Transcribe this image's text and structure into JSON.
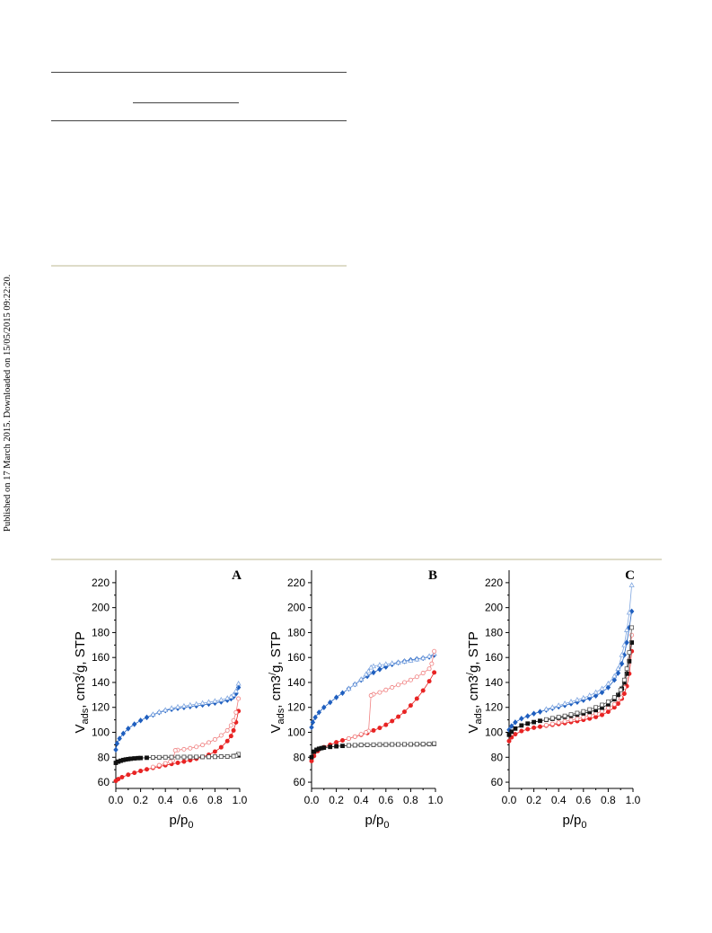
{
  "sidebar_note": "Published on 17 March 2015. Downloaded on 15/05/2015 09:22:20.",
  "chart_data": [
    {
      "panel": "A",
      "type": "scatter",
      "xlabel": "p/p0",
      "ylabel": "Vads, cm3/g, STP",
      "xlim": [
        0,
        1
      ],
      "ylim": [
        55,
        230
      ],
      "xticks": [
        0.0,
        0.2,
        0.4,
        0.6,
        0.8,
        1.0
      ],
      "yticks": [
        60,
        80,
        100,
        120,
        140,
        160,
        180,
        200,
        220
      ],
      "grid": false,
      "series": [
        {
          "color": "#1f5fbf",
          "marker": "filled-diamond",
          "branch": "adsorption",
          "x": [
            0.0,
            0.01,
            0.03,
            0.06,
            0.1,
            0.15,
            0.2,
            0.25,
            0.3,
            0.35,
            0.4,
            0.45,
            0.5,
            0.55,
            0.6,
            0.65,
            0.7,
            0.75,
            0.8,
            0.85,
            0.9,
            0.93,
            0.95,
            0.97,
            0.99
          ],
          "y": [
            86,
            91,
            95,
            99,
            103,
            106.5,
            109.5,
            112,
            114,
            116,
            117.5,
            118.5,
            119.3,
            120,
            120.7,
            121.3,
            122,
            122.8,
            123.6,
            124.5,
            125.8,
            127,
            128.5,
            131,
            136
          ]
        },
        {
          "color": "#7fa6e0",
          "marker": "open-triangle",
          "branch": "desorption",
          "x": [
            0.99,
            0.97,
            0.95,
            0.93,
            0.9,
            0.85,
            0.8,
            0.75,
            0.7,
            0.65,
            0.6,
            0.55,
            0.5,
            0.45,
            0.4,
            0.35,
            0.3
          ],
          "y": [
            139,
            133,
            130,
            128.5,
            127.3,
            126,
            125,
            124.2,
            123.4,
            122.6,
            121.8,
            121,
            120.3,
            119.3,
            117.8,
            116.3,
            114.3
          ]
        },
        {
          "color": "#e82424",
          "marker": "filled-circle",
          "branch": "adsorption",
          "x": [
            0.0,
            0.02,
            0.05,
            0.1,
            0.15,
            0.2,
            0.25,
            0.3,
            0.35,
            0.4,
            0.45,
            0.5,
            0.55,
            0.6,
            0.65,
            0.7,
            0.75,
            0.8,
            0.85,
            0.9,
            0.93,
            0.95,
            0.97,
            0.99
          ],
          "y": [
            61,
            62.5,
            64,
            66,
            67.5,
            69,
            70.3,
            71.5,
            72.6,
            73.6,
            74.6,
            75.5,
            76.5,
            77.6,
            78.8,
            80.3,
            82,
            84.5,
            88,
            93,
            97,
            101.5,
            108,
            117
          ]
        },
        {
          "color": "#f08080",
          "marker": "open-circle",
          "branch": "desorption",
          "x": [
            0.99,
            0.97,
            0.95,
            0.93,
            0.9,
            0.85,
            0.8,
            0.75,
            0.7,
            0.65,
            0.6,
            0.55,
            0.5,
            0.48,
            0.46,
            0.44,
            0.4,
            0.35,
            0.3
          ],
          "y": [
            127,
            116,
            109.5,
            105.5,
            101.5,
            97.5,
            94.3,
            91.8,
            89.8,
            88.3,
            87.2,
            86.4,
            85.8,
            85.5,
            77.5,
            76.5,
            75.2,
            73.6,
            72.2
          ]
        },
        {
          "color": "#111111",
          "marker": "filled-square",
          "branch": "adsorption",
          "x": [
            0.0,
            0.02,
            0.04,
            0.06,
            0.08,
            0.1,
            0.12,
            0.15,
            0.18,
            0.2,
            0.25,
            0.3,
            0.35,
            0.4,
            0.45,
            0.5,
            0.55,
            0.6,
            0.65,
            0.7,
            0.75,
            0.8,
            0.85,
            0.9,
            0.95,
            0.99
          ],
          "y": [
            75.5,
            76.5,
            77.2,
            77.8,
            78.2,
            78.5,
            78.8,
            79.1,
            79.3,
            79.4,
            79.6,
            79.8,
            79.9,
            80,
            80,
            80.1,
            80.1,
            80.2,
            80.2,
            80.3,
            80.3,
            80.4,
            80.5,
            80.6,
            80.9,
            81.5
          ]
        },
        {
          "color": "#555555",
          "marker": "open-square",
          "branch": "desorption",
          "x": [
            0.99,
            0.97,
            0.95,
            0.9,
            0.85,
            0.8,
            0.75,
            0.7,
            0.65,
            0.6,
            0.55,
            0.5,
            0.45,
            0.4,
            0.35,
            0.3
          ],
          "y": [
            82.5,
            81.2,
            80.8,
            80.6,
            80.5,
            80.4,
            80.4,
            80.3,
            80.3,
            80.2,
            80.2,
            80.1,
            80.1,
            80,
            80,
            79.9
          ]
        }
      ]
    },
    {
      "panel": "B",
      "type": "scatter",
      "xlabel": "p/p0",
      "ylabel": "Vads, cm3/g, STP",
      "xlim": [
        0,
        1
      ],
      "ylim": [
        55,
        230
      ],
      "xticks": [
        0.0,
        0.2,
        0.4,
        0.6,
        0.8,
        1.0
      ],
      "yticks": [
        60,
        80,
        100,
        120,
        140,
        160,
        180,
        200,
        220
      ],
      "grid": false,
      "series": [
        {
          "color": "#1f5fbf",
          "marker": "filled-diamond",
          "branch": "adsorption",
          "x": [
            0.0,
            0.01,
            0.03,
            0.06,
            0.1,
            0.15,
            0.2,
            0.25,
            0.3,
            0.35,
            0.4,
            0.45,
            0.5,
            0.55,
            0.6,
            0.65,
            0.7,
            0.75,
            0.8,
            0.85,
            0.9,
            0.95,
            0.99
          ],
          "y": [
            104,
            108,
            112,
            116,
            120,
            124,
            128,
            131.5,
            135,
            138.5,
            142,
            145,
            148,
            150.5,
            152.5,
            154.5,
            156,
            157,
            158,
            158.8,
            159.5,
            160.5,
            162
          ]
        },
        {
          "color": "#7fa6e0",
          "marker": "open-triangle",
          "branch": "desorption",
          "x": [
            0.99,
            0.95,
            0.9,
            0.85,
            0.8,
            0.75,
            0.7,
            0.65,
            0.6,
            0.55,
            0.5,
            0.48,
            0.46,
            0.44,
            0.4,
            0.35,
            0.3
          ],
          "y": [
            163,
            161,
            159.5,
            158.5,
            157.5,
            156.8,
            156,
            155.3,
            154.6,
            154,
            153,
            152,
            149,
            146.5,
            142.5,
            138.5,
            135
          ]
        },
        {
          "color": "#e82424",
          "marker": "filled-circle",
          "branch": "adsorption",
          "x": [
            0.0,
            0.02,
            0.05,
            0.1,
            0.15,
            0.2,
            0.25,
            0.3,
            0.35,
            0.4,
            0.45,
            0.5,
            0.55,
            0.6,
            0.65,
            0.7,
            0.75,
            0.8,
            0.85,
            0.9,
            0.95,
            0.99
          ],
          "y": [
            77,
            81,
            85,
            88,
            90,
            92,
            93.5,
            95,
            96.5,
            98,
            99.5,
            101.5,
            103.5,
            106,
            109,
            112.5,
            116.5,
            121.5,
            127,
            133.5,
            141,
            148
          ]
        },
        {
          "color": "#f08080",
          "marker": "open-circle",
          "branch": "desorption",
          "x": [
            0.99,
            0.97,
            0.95,
            0.9,
            0.85,
            0.8,
            0.75,
            0.7,
            0.65,
            0.6,
            0.55,
            0.5,
            0.48,
            0.46,
            0.44,
            0.4,
            0.35,
            0.3
          ],
          "y": [
            165,
            155,
            151,
            147.5,
            144.5,
            142,
            140,
            138,
            136,
            134,
            132,
            130.5,
            129.5,
            101,
            100,
            98.5,
            96.5,
            95
          ]
        },
        {
          "color": "#111111",
          "marker": "filled-square",
          "branch": "adsorption",
          "x": [
            0.0,
            0.02,
            0.04,
            0.06,
            0.08,
            0.1,
            0.15,
            0.2,
            0.25,
            0.3,
            0.35,
            0.4,
            0.45,
            0.5,
            0.55,
            0.6,
            0.65,
            0.7,
            0.75,
            0.8,
            0.85,
            0.9,
            0.95,
            0.99
          ],
          "y": [
            80,
            84.5,
            86,
            86.8,
            87.3,
            87.7,
            88.3,
            88.8,
            89.1,
            89.4,
            89.6,
            89.8,
            89.9,
            90,
            90.1,
            90.1,
            90.2,
            90.2,
            90.3,
            90.3,
            90.4,
            90.4,
            90.5,
            90.7
          ]
        },
        {
          "color": "#555555",
          "marker": "open-square",
          "branch": "desorption",
          "x": [
            0.99,
            0.95,
            0.9,
            0.85,
            0.8,
            0.75,
            0.7,
            0.65,
            0.6,
            0.55,
            0.5,
            0.45,
            0.4,
            0.35,
            0.3
          ],
          "y": [
            91,
            90.7,
            90.6,
            90.5,
            90.4,
            90.4,
            90.3,
            90.3,
            90.2,
            90.2,
            90.1,
            90,
            89.9,
            89.7,
            89.5
          ]
        }
      ]
    },
    {
      "panel": "C",
      "type": "scatter",
      "xlabel": "p/p0",
      "ylabel": "Vads, cm3/g, STP",
      "xlim": [
        0,
        1
      ],
      "ylim": [
        55,
        230
      ],
      "xticks": [
        0.0,
        0.2,
        0.4,
        0.6,
        0.8,
        1.0
      ],
      "yticks": [
        60,
        80,
        100,
        120,
        140,
        160,
        180,
        200,
        220
      ],
      "grid": false,
      "series": [
        {
          "color": "#1f5fbf",
          "marker": "filled-diamond",
          "branch": "adsorption",
          "x": [
            0.0,
            0.02,
            0.05,
            0.1,
            0.15,
            0.2,
            0.25,
            0.3,
            0.35,
            0.4,
            0.45,
            0.5,
            0.55,
            0.6,
            0.65,
            0.7,
            0.75,
            0.8,
            0.85,
            0.88,
            0.91,
            0.93,
            0.95,
            0.97,
            0.99
          ],
          "y": [
            102,
            105,
            108,
            111,
            113,
            115,
            116.5,
            118,
            119.3,
            120.5,
            121.7,
            123,
            124.3,
            125.8,
            127.3,
            129.3,
            132,
            136,
            142,
            147.5,
            155,
            162,
            172,
            184,
            197
          ]
        },
        {
          "color": "#7fa6e0",
          "marker": "open-triangle",
          "branch": "desorption",
          "x": [
            0.99,
            0.97,
            0.95,
            0.93,
            0.91,
            0.88,
            0.85,
            0.8,
            0.75,
            0.7,
            0.65,
            0.6,
            0.55,
            0.5,
            0.45,
            0.4,
            0.35,
            0.3
          ],
          "y": [
            218,
            196,
            182,
            170,
            162,
            151,
            145,
            139,
            135,
            132,
            129.5,
            127.5,
            126,
            124.5,
            123,
            121.5,
            120,
            118.5
          ]
        },
        {
          "color": "#e82424",
          "marker": "filled-circle",
          "branch": "adsorption",
          "x": [
            0.0,
            0.02,
            0.05,
            0.1,
            0.15,
            0.2,
            0.25,
            0.3,
            0.35,
            0.4,
            0.45,
            0.5,
            0.55,
            0.6,
            0.65,
            0.7,
            0.75,
            0.8,
            0.85,
            0.88,
            0.91,
            0.93,
            0.95,
            0.97,
            0.99
          ],
          "y": [
            93,
            96,
            98.5,
            101,
            102.5,
            103.7,
            104.5,
            105.3,
            106,
            106.7,
            107.4,
            108.2,
            109,
            110,
            111,
            112.3,
            114,
            116.5,
            120,
            123,
            127,
            131,
            137,
            147,
            165
          ]
        },
        {
          "color": "#f08080",
          "marker": "open-circle",
          "branch": "desorption",
          "x": [
            0.99,
            0.97,
            0.95,
            0.93,
            0.9,
            0.85,
            0.8,
            0.75,
            0.7,
            0.65,
            0.6,
            0.55,
            0.5,
            0.45,
            0.4,
            0.35,
            0.3
          ],
          "y": [
            178,
            158,
            145,
            136,
            128,
            122.5,
            119.5,
            117,
            115,
            113.5,
            112,
            110.8,
            109.8,
            108.8,
            107.8,
            106.8,
            105.8
          ]
        },
        {
          "color": "#111111",
          "marker": "filled-square",
          "branch": "adsorption",
          "x": [
            0.0,
            0.02,
            0.05,
            0.1,
            0.15,
            0.2,
            0.25,
            0.3,
            0.35,
            0.4,
            0.45,
            0.5,
            0.55,
            0.6,
            0.65,
            0.7,
            0.75,
            0.8,
            0.85,
            0.88,
            0.91,
            0.93,
            0.95,
            0.97,
            0.99
          ],
          "y": [
            98,
            100.5,
            103,
            105.5,
            107,
            108.2,
            109.2,
            110,
            110.8,
            111.6,
            112.4,
            113.3,
            114.2,
            115.2,
            116.3,
            117.8,
            119.7,
            122.5,
            126.5,
            130,
            135,
            140,
            147,
            157,
            172
          ]
        },
        {
          "color": "#555555",
          "marker": "open-square",
          "branch": "desorption",
          "x": [
            0.99,
            0.97,
            0.95,
            0.93,
            0.9,
            0.85,
            0.8,
            0.75,
            0.7,
            0.65,
            0.6,
            0.55,
            0.5,
            0.45,
            0.4,
            0.35,
            0.3
          ],
          "y": [
            184,
            164,
            151,
            142,
            134,
            128,
            124.5,
            122,
            120,
            118.3,
            116.8,
            115.5,
            114.3,
            113.2,
            112.2,
            111.3,
            110.3
          ]
        }
      ]
    }
  ]
}
